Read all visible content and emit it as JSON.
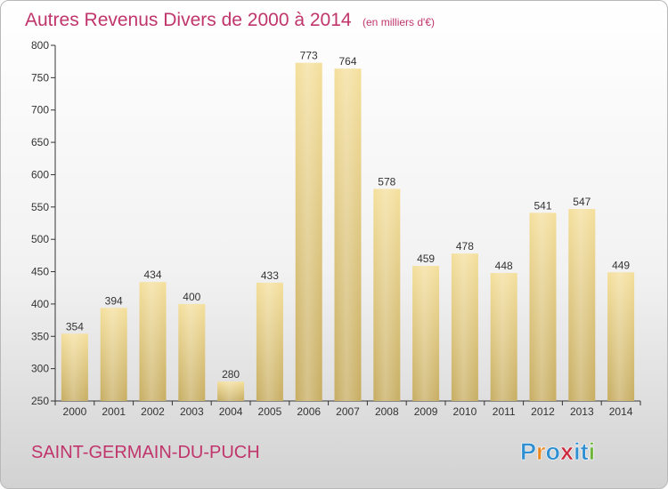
{
  "chart_data": {
    "type": "bar",
    "title": "Autres Revenus Divers de 2000 à 2014",
    "subtitle": "(en milliers d'€)",
    "categories": [
      "2000",
      "2001",
      "2002",
      "2003",
      "2004",
      "2005",
      "2006",
      "2007",
      "2008",
      "2009",
      "2010",
      "2011",
      "2012",
      "2013",
      "2014"
    ],
    "values": [
      354,
      394,
      434,
      400,
      280,
      433,
      773,
      764,
      578,
      459,
      478,
      448,
      541,
      547,
      449
    ],
    "ylim": [
      250,
      800
    ],
    "yticks": [
      250,
      300,
      350,
      400,
      450,
      500,
      550,
      600,
      650,
      700,
      750,
      800
    ],
    "grid": false,
    "bar_color": "#e6cf86"
  },
  "commune_name": "SAINT-GERMAIN-DU-PUCH",
  "logo": {
    "text": "Proxiti",
    "colors": [
      "#2f8fd0",
      "#e8871e",
      "#2f8fd0",
      "#cc2a3c",
      "#2f8fd0",
      "#2f8fd0",
      "#6fb53a"
    ]
  },
  "colors": {
    "accent": "#c0356b"
  }
}
